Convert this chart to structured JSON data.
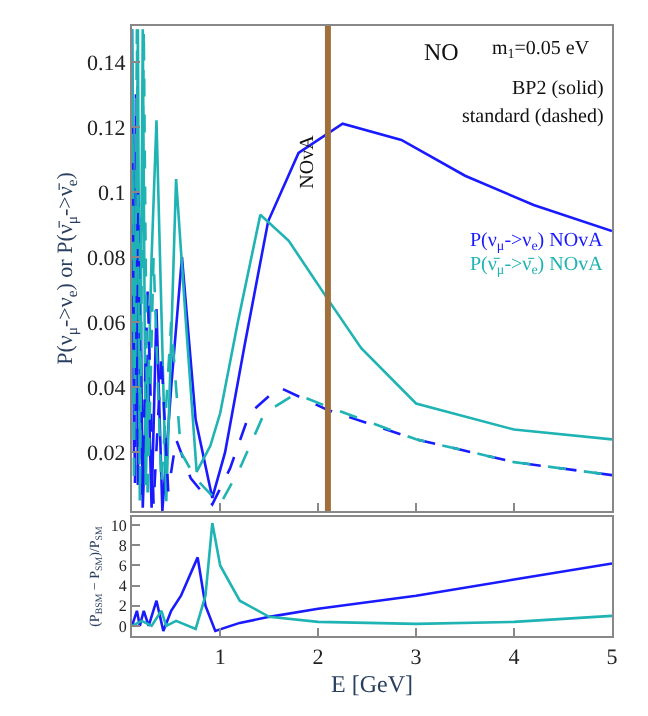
{
  "chart_data": [
    {
      "type": "line",
      "ylabel": "P(ν$_{μ}$->ν$_{e}$) or P(ν̄$_{μ}$->ν̄$_{e}$)",
      "xlim": [
        0.1,
        5
      ],
      "xticks": [
        1,
        2,
        3,
        4,
        5
      ],
      "ylim": [
        0.002,
        0.151
      ],
      "yticks": [
        0.02,
        0.04,
        0.06,
        0.08,
        0.1,
        0.12,
        0.14
      ],
      "tick_labels": "y",
      "marker": "none",
      "annotations": [
        "NO",
        "m$_{1}$=0.05 eV",
        "BP2 (solid)",
        "standard (dashed)"
      ],
      "ref_lines": [
        {
          "axis": "x",
          "value": 2.1,
          "label": "NOvA",
          "color": "#a0703c"
        }
      ],
      "series": [
        {
          "name": "P(ν$_{μ}$->ν$_{e}$) NOvA",
          "color": "#1a1aff",
          "line_style": "solid",
          "x": [
            0.1,
            0.12,
            0.14,
            0.16,
            0.18,
            0.21,
            0.26,
            0.3,
            0.35,
            0.41,
            0.5,
            0.61,
            0.75,
            0.92,
            1.05,
            1.25,
            1.49,
            1.8,
            2.25,
            2.85,
            3.5,
            4.2,
            5
          ],
          "values": [
            0.15,
            0.02,
            0.13,
            0.01,
            0.092,
            0.003,
            0.05,
            0.003,
            0.064,
            0.002,
            0.04,
            0.08,
            0.03,
            0.006,
            0.02,
            0.053,
            0.091,
            0.112,
            0.121,
            0.116,
            0.105,
            0.096,
            0.088
          ]
        },
        {
          "name": "P(ν̄$_{μ}$->ν̄$_{e}$) NOvA",
          "color": "#1fb3b3",
          "line_style": "solid",
          "x": [
            0.1,
            0.13,
            0.16,
            0.18,
            0.21,
            0.24,
            0.3,
            0.35,
            0.45,
            0.55,
            0.65,
            0.76,
            0.9,
            1.0,
            1.18,
            1.41,
            1.7,
            2.1,
            2.44,
            3.0,
            4.0,
            5.0
          ],
          "values": [
            0.15,
            0.03,
            0.15,
            0.02,
            0.15,
            0.01,
            0.08,
            0.122,
            0.005,
            0.104,
            0.06,
            0.014,
            0.022,
            0.032,
            0.06,
            0.093,
            0.085,
            0.067,
            0.052,
            0.035,
            0.027,
            0.024
          ]
        },
        {
          "color": "#1a1aff",
          "line_style": "dashed",
          "x": [
            0.1,
            0.13,
            0.16,
            0.2,
            0.26,
            0.32,
            0.4,
            0.47,
            0.55,
            0.7,
            0.92,
            1.1,
            1.3,
            1.6,
            2.1,
            3.0,
            4.0,
            5.0
          ],
          "values": [
            0.12,
            0.01,
            0.1,
            0.005,
            0.07,
            0.004,
            0.05,
            0.008,
            0.024,
            0.012,
            0.004,
            0.015,
            0.032,
            0.04,
            0.033,
            0.024,
            0.017,
            0.013
          ]
        },
        {
          "color": "#1fb3b3",
          "line_style": "dashed",
          "x": [
            0.1,
            0.12,
            0.15,
            0.18,
            0.22,
            0.26,
            0.32,
            0.4,
            0.5,
            0.6,
            0.75,
            1.0,
            1.2,
            1.45,
            1.77,
            2.1,
            3.0,
            4.0,
            5.0
          ],
          "values": [
            0.14,
            0.01,
            0.15,
            0.005,
            0.15,
            0.005,
            0.08,
            0.01,
            0.06,
            0.02,
            0.012,
            0.004,
            0.015,
            0.032,
            0.038,
            0.034,
            0.024,
            0.017,
            0.013
          ]
        }
      ]
    },
    {
      "type": "line",
      "xlabel": "E [GeV]",
      "ylabel": "(P$_{BSM}$ − P$_{SM}$)/P$_{SM}$",
      "xlim": [
        0.1,
        5
      ],
      "xticks": [
        1,
        2,
        3,
        4,
        5
      ],
      "ylim": [
        -1,
        10.8
      ],
      "yticks": [
        0,
        2,
        4,
        6,
        8,
        10
      ],
      "marker": "none",
      "series": [
        {
          "color": "#1a1aff",
          "line_style": "solid",
          "x": [
            0.1,
            0.15,
            0.18,
            0.22,
            0.27,
            0.35,
            0.42,
            0.5,
            0.6,
            0.77,
            0.85,
            0.95,
            1.2,
            1.5,
            2,
            3,
            4,
            5
          ],
          "values": [
            0,
            1.5,
            0,
            1.5,
            0,
            2.5,
            -0.5,
            1.5,
            3,
            6.8,
            2,
            -0.5,
            0.3,
            0.9,
            1.7,
            3.0,
            4.6,
            6.2
          ]
        },
        {
          "color": "#1fb3b3",
          "line_style": "solid",
          "x": [
            0.1,
            0.2,
            0.3,
            0.4,
            0.45,
            0.55,
            0.75,
            0.85,
            0.92,
            1.0,
            1.2,
            1.5,
            2,
            3,
            4,
            5
          ],
          "values": [
            0,
            0.5,
            0,
            1.5,
            0,
            0.5,
            -0.3,
            3,
            10.2,
            6,
            2.5,
            0.9,
            0.4,
            0.2,
            0.4,
            1.0
          ]
        }
      ]
    }
  ]
}
